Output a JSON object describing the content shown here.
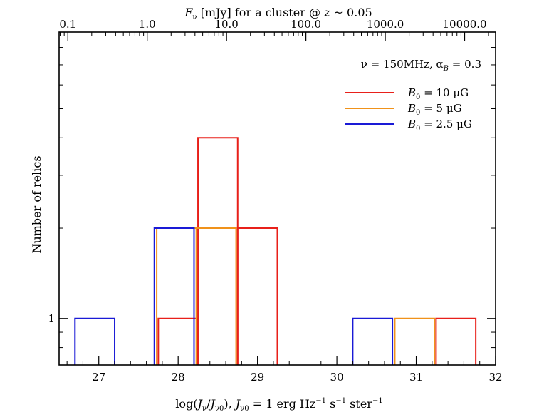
{
  "chart_data": {
    "type": "histogram",
    "title": "",
    "xlabel": "log(Jν/Jν0),    Jν0 = 1 erg Hz⁻¹ s⁻¹ ster⁻¹",
    "xlabel_parts": {
      "main": "log(Jν/Jν0),",
      "norm": "Jν0 = 1 erg Hz⁻¹ s⁻¹ ster⁻¹"
    },
    "ylabel": "Number of relics",
    "top_xlabel": "Fν [mJy] for a cluster @ z ~ 0.05",
    "xlim": [
      26.5,
      32.0
    ],
    "ylim_log": [
      0.7,
      9.0
    ],
    "yscale": "log",
    "x_ticks": [
      27,
      28,
      29,
      30,
      31,
      32
    ],
    "x_tick_labels": [
      "27",
      "28",
      "29",
      "30",
      "31",
      "32"
    ],
    "y_ticks": [
      1
    ],
    "y_tick_labels": [
      "1"
    ],
    "top_ticks_log_x": [
      26.61,
      27.61,
      28.61,
      29.61,
      30.61,
      31.61
    ],
    "top_tick_labels": [
      "0.1",
      "1.0",
      "10.0",
      "100.0",
      "1000.0",
      "10000.0"
    ],
    "annotation": "ν = 150MHz, αB = 0.3",
    "legend_position": "top-right",
    "series": [
      {
        "name": "B0 = 10 μG",
        "color": "#e8201a",
        "bins": [
          {
            "x0": 27.75,
            "x1": 28.25,
            "count": 1
          },
          {
            "x0": 28.25,
            "x1": 28.75,
            "count": 4
          },
          {
            "x0": 28.75,
            "x1": 29.25,
            "count": 2
          },
          {
            "x0": 31.25,
            "x1": 31.75,
            "count": 1
          }
        ]
      },
      {
        "name": "B0 = 5 μG",
        "color": "#f0921a",
        "bins": [
          {
            "x0": 27.73,
            "x1": 28.23,
            "count": 2
          },
          {
            "x0": 28.23,
            "x1": 28.73,
            "count": 2
          },
          {
            "x0": 30.73,
            "x1": 31.23,
            "count": 1
          }
        ]
      },
      {
        "name": "B0 = 2.5 μG",
        "color": "#1a1ad6",
        "bins": [
          {
            "x0": 26.7,
            "x1": 27.2,
            "count": 1
          },
          {
            "x0": 27.7,
            "x1": 28.2,
            "count": 2
          },
          {
            "x0": 30.2,
            "x1": 30.7,
            "count": 1
          }
        ]
      }
    ]
  }
}
